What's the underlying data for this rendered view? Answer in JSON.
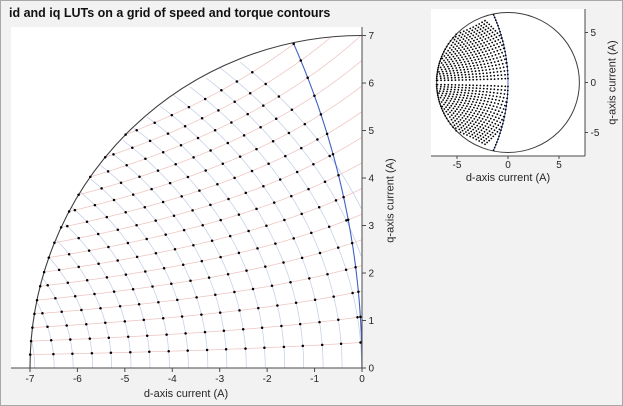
{
  "window": {
    "bg": "#f2f2f2",
    "border": "#a8a8a8"
  },
  "chart_data": [
    {
      "id": "main",
      "type": "scatter",
      "title": "id and iq LUTs on a grid of speed and torque contours",
      "xlabel": "d-axis current (A)",
      "ylabel": "q-axis current (A)",
      "y_axis_location": "right",
      "xlim": [
        -7.4,
        0
      ],
      "ylim": [
        0,
        7.18
      ],
      "xticks": [
        -7,
        -6,
        -5,
        -4,
        -3,
        -2,
        -1,
        0
      ],
      "yticks": [
        0,
        1,
        2,
        3,
        4,
        5,
        6,
        7
      ],
      "grid": false,
      "legend": "none",
      "axis_color": "#4a4a4a",
      "circle_color": "#3d3d3d",
      "current_limit_radius_A": 7,
      "mtpa": {
        "color": "#4160c4",
        "id_coeff": 0.0296,
        "endpoint_id_A": -1.45,
        "endpoint_iq_A": 6.85
      },
      "torque_contours": {
        "color": "#eec4c0",
        "saliency_coeff": 0.13,
        "levels": [
          0.54,
          1.08,
          1.62,
          2.16,
          2.7,
          3.24,
          3.78,
          4.32,
          4.86,
          5.4,
          5.94,
          6.48,
          7.02,
          7.56,
          8.1
        ]
      },
      "speed_contours": {
        "color": "#c4cfe8",
        "ellipse_center_d_A": -11,
        "axis_ratio": 0.78,
        "ellipse_a_values": [
          4.1,
          4.51,
          4.91,
          5.32,
          5.72,
          6.13,
          6.53,
          6.94,
          7.34,
          7.75,
          8.15,
          8.56,
          8.96,
          9.37,
          9.77,
          10.18,
          10.58,
          10.99,
          11.39,
          11.8
        ]
      },
      "dots": {
        "color": "#000000",
        "radius_px": 1.25
      }
    },
    {
      "id": "inset",
      "type": "scatter",
      "title": "",
      "xlabel": "d-axis current (A)",
      "ylabel": "q-axis current (A)",
      "y_axis_location": "right",
      "xlim": [
        -7.55,
        7.55
      ],
      "ylim": [
        -7.35,
        7.35
      ],
      "xticks": [
        -5,
        0,
        5
      ],
      "yticks": [
        -5,
        0,
        5
      ],
      "grid": false,
      "legend": "none",
      "axis_color": "#4a4a4a",
      "circle_color": "#3d3d3d",
      "current_limit_radius_A": 7,
      "mtpa": {
        "color": "#4160c4",
        "id_coeff": 0.0296
      },
      "torque_contours": {
        "color": "#eec4c0",
        "saliency_coeff": 0.13,
        "levels": [
          0.4,
          0.8,
          1.2,
          1.6,
          2,
          2.4,
          2.8,
          3.2,
          3.6,
          4,
          4.4,
          4.8,
          5.2,
          5.6,
          6,
          6.4,
          6.8,
          7.2,
          7.6,
          8
        ]
      },
      "speed_contours": {
        "color": "#c4cfe8",
        "ellipse_center_d_A": -11,
        "axis_ratio": 0.78,
        "ellipse_a_values": [
          4.1,
          4.45,
          4.8,
          5.15,
          5.5,
          5.85,
          6.2,
          6.55,
          6.9,
          7.25,
          7.6,
          7.95,
          8.3,
          8.65,
          9,
          9.35,
          9.7,
          10.05,
          10.4,
          10.75,
          11.1,
          11.45,
          11.8
        ]
      },
      "dots": {
        "color": "#000000",
        "radius_px": 0.9
      }
    }
  ]
}
